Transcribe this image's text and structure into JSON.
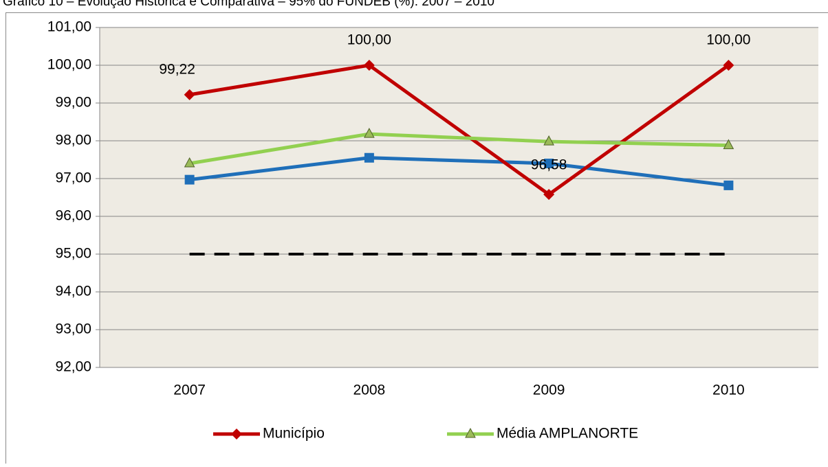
{
  "chart_data": {
    "type": "line",
    "title": "Gráfico 10 – Evolução Histórica e Comparativa – 95% do FUNDEB (%): 2007 – 2010",
    "categories": [
      "2007",
      "2008",
      "2009",
      "2010"
    ],
    "series": [
      {
        "color": "#1f6fb9",
        "marker": "square",
        "values": [
          96.97,
          97.55,
          97.4,
          96.82
        ]
      },
      {
        "color": "#000000",
        "marker": null,
        "dashed": true,
        "values": [
          95,
          95,
          95,
          95
        ]
      },
      {
        "name": "Município",
        "color": "#c00000",
        "marker": "diamond",
        "values": [
          99.22,
          100,
          96.58,
          100
        ],
        "value_labels": [
          "99,22",
          "100,00",
          "96,58",
          "100,00"
        ]
      },
      {
        "name": "Média AMPLANORTE",
        "color": "#92d050",
        "marker": "triangle",
        "values": [
          97.4,
          98.18,
          97.98,
          97.88
        ]
      }
    ],
    "ylim": [
      92,
      101
    ],
    "yticks": [
      {
        "value": 92,
        "label": "92,00"
      },
      {
        "value": 93,
        "label": "93,00"
      },
      {
        "value": 94,
        "label": "94,00"
      },
      {
        "value": 95,
        "label": "95,00"
      },
      {
        "value": 96,
        "label": "96,00"
      },
      {
        "value": 97,
        "label": "97,00"
      },
      {
        "value": 98,
        "label": "98,00"
      },
      {
        "value": 99,
        "label": "99,00"
      },
      {
        "value": 100,
        "label": "100,00"
      },
      {
        "value": 101,
        "label": "101,00"
      }
    ],
    "grid": true,
    "legend": "bottom",
    "plot_background": "#eeebe3"
  }
}
